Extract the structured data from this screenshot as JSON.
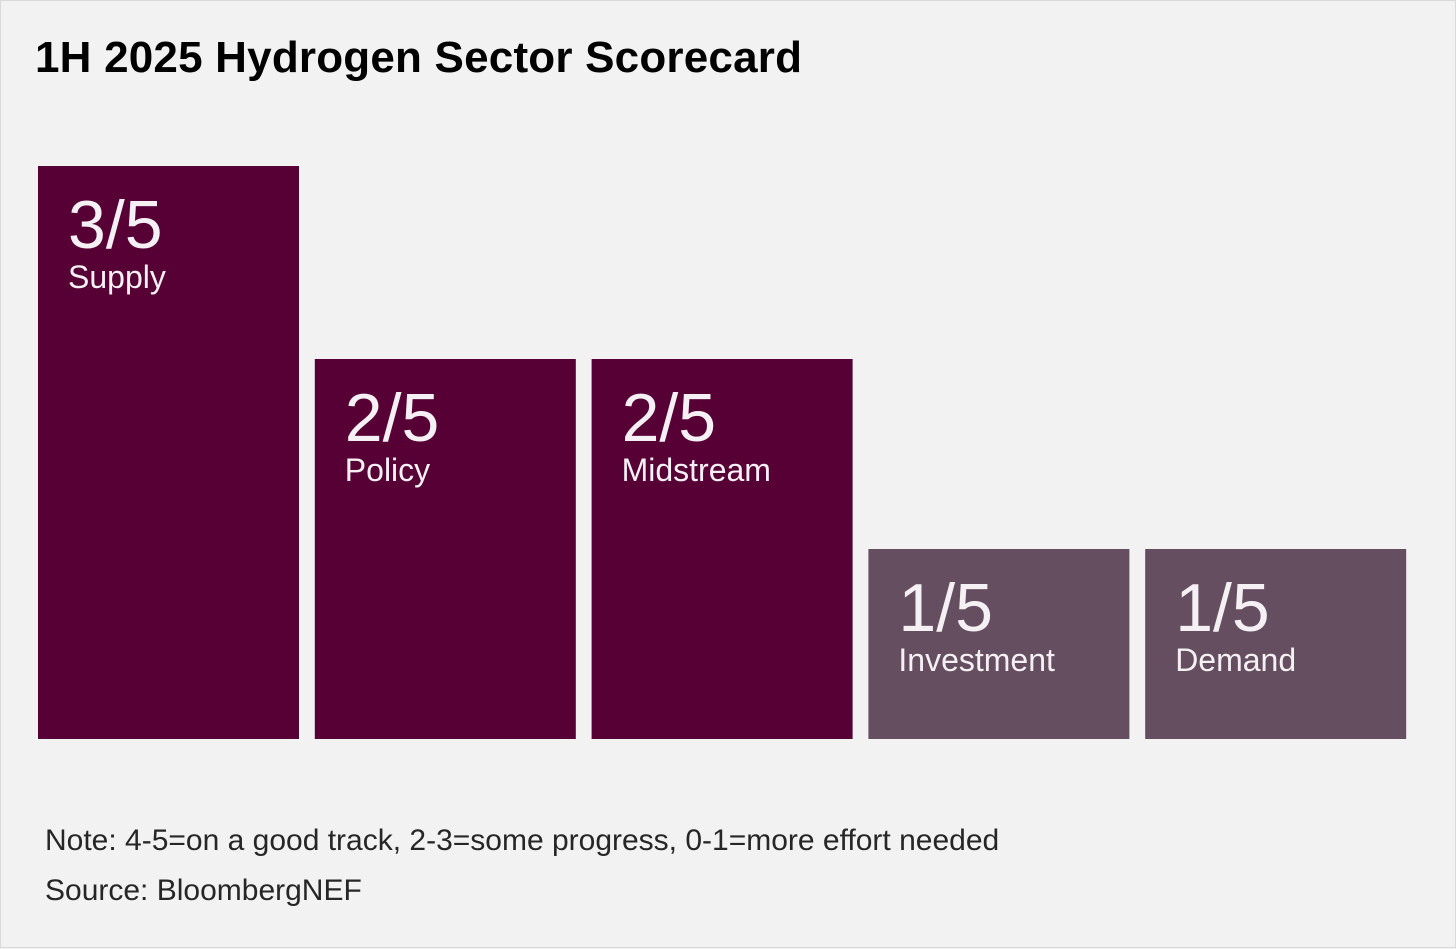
{
  "chart_data": {
    "type": "bar",
    "title": "1H 2025 Hydrogen Sector Scorecard",
    "categories": [
      "Supply",
      "Policy",
      "Midstream",
      "Investment",
      "Demand"
    ],
    "values": [
      3,
      2,
      2,
      1,
      1
    ],
    "score_labels": [
      "3/5",
      "2/5",
      "2/5",
      "1/5",
      "1/5"
    ],
    "max_score": 5,
    "colors": [
      "#560035",
      "#560035",
      "#560035",
      "#654e5f",
      "#654e5f"
    ],
    "note": "Note: 4-5=on a good track, 2-3=some progress, 0-1=more effort needed",
    "source": "Source: BloombergNEF"
  }
}
